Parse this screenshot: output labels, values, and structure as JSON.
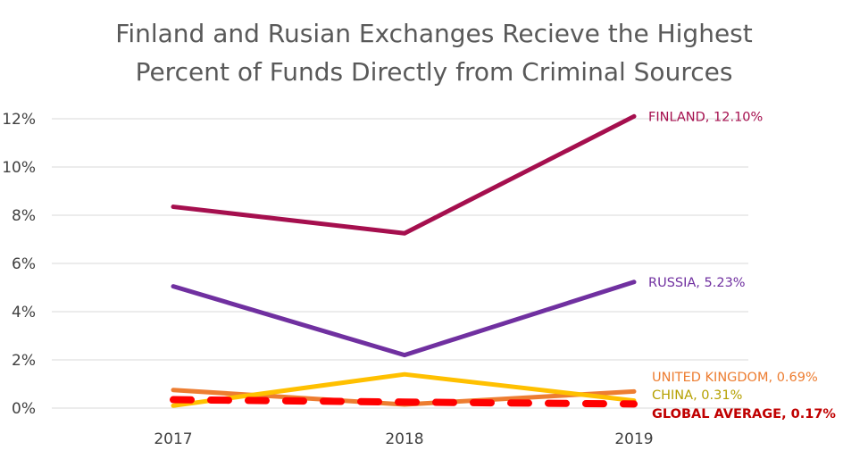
{
  "chart_data": {
    "type": "line",
    "title_lines": [
      "Finland and Rusian Exchanges Recieve the Highest",
      "Percent of Funds Directly from Criminal Sources"
    ],
    "xlabel": "",
    "ylabel": "",
    "categories": [
      "2017",
      "2018",
      "2019"
    ],
    "ylim": [
      0,
      12
    ],
    "yticks": [
      0,
      2,
      4,
      6,
      8,
      10,
      12
    ],
    "ytick_labels": [
      "0%",
      "2%",
      "4%",
      "6%",
      "8%",
      "10%",
      "12%"
    ],
    "grid": true,
    "legend": "none",
    "series": [
      {
        "name": "FINLAND",
        "values": [
          8.35,
          7.25,
          12.1
        ],
        "color": "#A50F4E",
        "dashed": false,
        "end_label": "FINLAND, 12.10%",
        "label_bold": false
      },
      {
        "name": "RUSSIA",
        "values": [
          5.05,
          2.2,
          5.23
        ],
        "color": "#7030A0",
        "dashed": false,
        "end_label": "RUSSIA, 5.23%",
        "label_bold": false
      },
      {
        "name": "UNITED KINGDOM",
        "values": [
          0.75,
          0.15,
          0.69
        ],
        "color": "#ED7D31",
        "dashed": false,
        "end_label": "UNITED KINGDOM, 0.69%",
        "label_bold": false
      },
      {
        "name": "CHINA",
        "values": [
          0.1,
          1.4,
          0.31
        ],
        "color": "#FFC000",
        "dashed": false,
        "end_label": "CHINA, 0.31%",
        "label_bold": false
      },
      {
        "name": "GLOBAL AVERAGE",
        "values": [
          0.35,
          0.25,
          0.17
        ],
        "color": "#FF0000",
        "dashed": true,
        "end_label": "GLOBAL AVERAGE, 0.17%",
        "label_bold": true
      }
    ],
    "end_label_colors": [
      "#A50F4E",
      "#7030A0",
      "#ED7D31",
      "#B5A000",
      "#C00000"
    ]
  }
}
